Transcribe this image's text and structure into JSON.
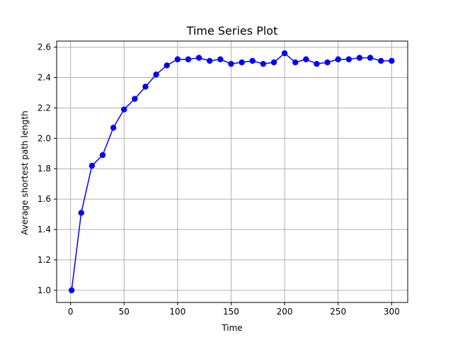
{
  "chart_data": {
    "type": "line",
    "title": "Time Series Plot",
    "xlabel": "Time",
    "ylabel": "Average shortest path length",
    "xlim": [
      -13,
      315
    ],
    "ylim": [
      0.92,
      2.64
    ],
    "xticks": [
      0,
      50,
      100,
      150,
      200,
      250,
      300
    ],
    "yticks": [
      1.0,
      1.2,
      1.4,
      1.6,
      1.8,
      2.0,
      2.2,
      2.4,
      2.6
    ],
    "grid": true,
    "series": [
      {
        "color": "#0000ff",
        "marker": "circle",
        "x": [
          1,
          10,
          20,
          30,
          40,
          50,
          60,
          70,
          80,
          90,
          100,
          110,
          120,
          130,
          140,
          150,
          160,
          170,
          180,
          190,
          200,
          210,
          220,
          230,
          240,
          250,
          260,
          270,
          280,
          290,
          300
        ],
        "y": [
          1.0,
          1.51,
          1.82,
          1.89,
          2.07,
          2.19,
          2.26,
          2.34,
          2.42,
          2.48,
          2.52,
          2.52,
          2.53,
          2.51,
          2.52,
          2.49,
          2.5,
          2.51,
          2.49,
          2.5,
          2.56,
          2.5,
          2.52,
          2.49,
          2.5,
          2.52,
          2.52,
          2.53,
          2.53,
          2.51,
          2.51
        ]
      }
    ]
  }
}
